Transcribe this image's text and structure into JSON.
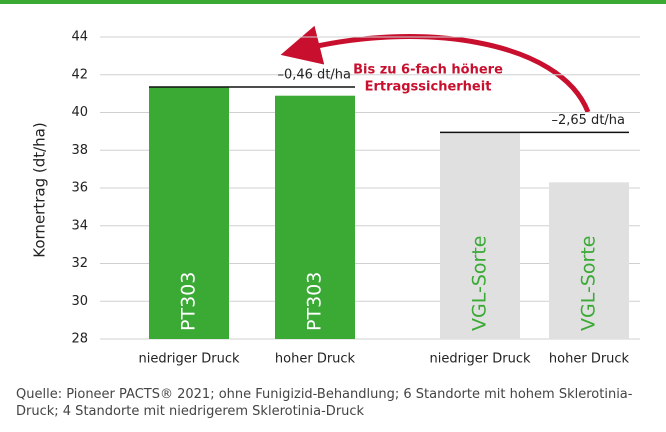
{
  "chart_data": {
    "type": "bar",
    "y_label": "Kornertrag (dt/ha)",
    "categories": [
      "niedriger Druck",
      "hoher Druck",
      "niedriger Druck",
      "hoher Druck"
    ],
    "values": [
      41.35,
      40.89,
      38.95,
      36.3
    ],
    "colors": [
      "#3aaa35",
      "#3aaa35",
      "#e0e0e0",
      "#e0e0e0"
    ],
    "bar_labels": [
      "PT303",
      "PT303",
      "VGL-Sorte",
      "VGL-Sorte"
    ],
    "ylim": [
      28,
      44
    ],
    "yticks": [
      28,
      30,
      32,
      34,
      36,
      38,
      40,
      42,
      44
    ],
    "grid": true,
    "differences": [
      "–0,46 dt/ha",
      "–2,65 dt/ha"
    ],
    "callout": [
      "Bis zu 6-fach höhere",
      "Ertragssicherheit"
    ],
    "footnote": "Quelle: Pioneer PACTS® 2021; ohne Funigizid-Behandlung; 6 Standorte mit hohem Sklerotinia-Druck; 4 Standorte mit niedrigerem Sklerotinia-Druck"
  }
}
